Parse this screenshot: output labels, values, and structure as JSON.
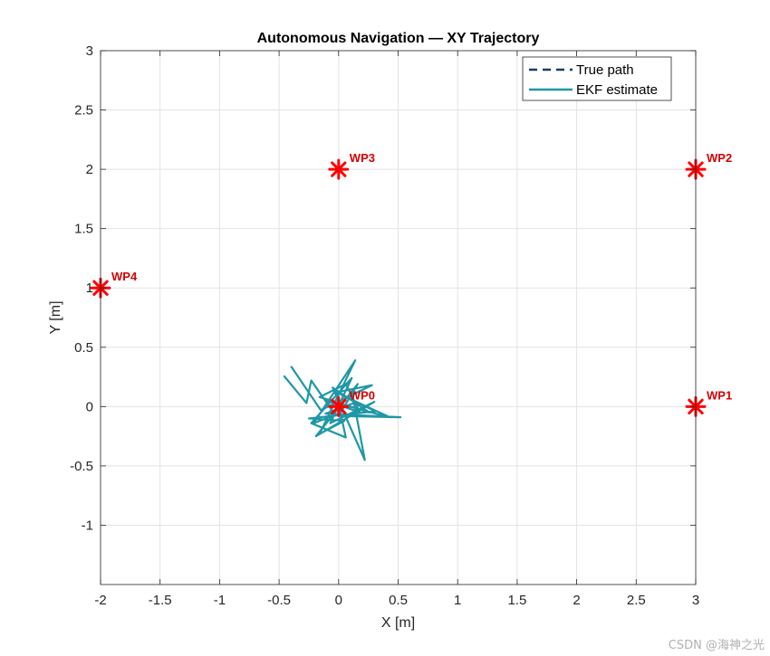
{
  "chart_data": {
    "type": "line",
    "title": "Autonomous Navigation — XY Trajectory",
    "xlabel": "X [m]",
    "ylabel": "Y [m]",
    "xlim": [
      -2,
      3
    ],
    "ylim": [
      -1.5,
      3
    ],
    "xticks": [
      -2,
      -1.5,
      -1,
      -0.5,
      0,
      0.5,
      1,
      1.5,
      2,
      2.5,
      3
    ],
    "xtick_labels": [
      "-2",
      "-1.5",
      "-1",
      "-0.5",
      "0",
      "0.5",
      "1",
      "1.5",
      "2",
      "2.5",
      "3"
    ],
    "yticks": [
      -1,
      -0.5,
      0,
      0.5,
      1,
      1.5,
      2,
      2.5,
      3
    ],
    "ytick_labels": [
      "-1",
      "-0.5",
      "0",
      "0.5",
      "1",
      "1.5",
      "2",
      "2.5",
      "3"
    ],
    "grid": true,
    "legend_position": "top-right",
    "series": [
      {
        "name": "True path",
        "style": "dashed",
        "color": "#1a3a6b",
        "x": [],
        "y": []
      },
      {
        "name": "EKF estimate",
        "style": "solid",
        "color": "#1f97a6",
        "x": [
          -0.46,
          -0.27,
          -0.23,
          -0.03,
          -0.21,
          0.14,
          -0.16,
          0.05,
          -0.25,
          0.31,
          0.02,
          0.43,
          -0.1,
          0.18,
          0.06,
          -0.16,
          0.26,
          -0.05,
          0.22,
          0.13,
          -0.11,
          0.52,
          0.0,
          0.16,
          -0.19,
          0.3,
          -0.07,
          0.11,
          -0.23,
          0.06,
          -0.02,
          0.28,
          -0.15,
          -0.4
        ],
        "y": [
          0.26,
          0.03,
          0.22,
          -0.07,
          -0.14,
          0.39,
          -0.23,
          -0.12,
          -0.1,
          -0.04,
          0.1,
          -0.09,
          0.05,
          -0.05,
          0.19,
          0.08,
          -0.05,
          0.16,
          -0.45,
          0.03,
          -0.06,
          -0.09,
          -0.08,
          0.19,
          -0.25,
          0.04,
          -0.14,
          0.24,
          -0.14,
          -0.26,
          0.12,
          0.18,
          -0.03,
          0.34
        ]
      }
    ],
    "waypoints": [
      {
        "label": "WP0",
        "x": 0,
        "y": 0
      },
      {
        "label": "WP1",
        "x": 3,
        "y": 0
      },
      {
        "label": "WP2",
        "x": 3,
        "y": 2
      },
      {
        "label": "WP3",
        "x": 0,
        "y": 2
      },
      {
        "label": "WP4",
        "x": -2,
        "y": 1
      }
    ],
    "waypoint_color": "#ff0000",
    "waypoint_label_color": "#d40000"
  },
  "watermark": "CSDN @海神之光"
}
